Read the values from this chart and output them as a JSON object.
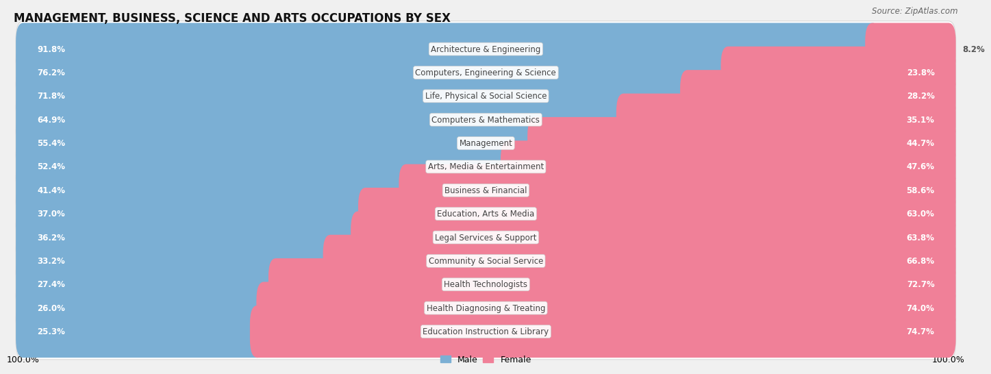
{
  "title": "MANAGEMENT, BUSINESS, SCIENCE AND ARTS OCCUPATIONS BY SEX",
  "source": "Source: ZipAtlas.com",
  "categories": [
    "Architecture & Engineering",
    "Computers, Engineering & Science",
    "Life, Physical & Social Science",
    "Computers & Mathematics",
    "Management",
    "Arts, Media & Entertainment",
    "Business & Financial",
    "Education, Arts & Media",
    "Legal Services & Support",
    "Community & Social Service",
    "Health Technologists",
    "Health Diagnosing & Treating",
    "Education Instruction & Library"
  ],
  "male_pct": [
    91.8,
    76.2,
    71.8,
    64.9,
    55.4,
    52.4,
    41.4,
    37.0,
    36.2,
    33.2,
    27.4,
    26.0,
    25.3
  ],
  "female_pct": [
    8.2,
    23.8,
    28.2,
    35.1,
    44.7,
    47.6,
    58.6,
    63.0,
    63.8,
    66.8,
    72.7,
    74.0,
    74.7
  ],
  "male_color": "#7bafd4",
  "female_color": "#f08098",
  "bg_color": "#f0f0f0",
  "row_bg_color": "#ffffff",
  "row_edge_color": "#d8d8d8",
  "title_fontsize": 12,
  "label_fontsize": 8.5,
  "source_fontsize": 8.5,
  "legend_fontsize": 9,
  "bar_height": 0.62,
  "total_width": 100.0,
  "male_label_color": "white",
  "female_label_inside_color": "white",
  "female_label_outside_color": "#555555",
  "cat_label_color": "#444444"
}
